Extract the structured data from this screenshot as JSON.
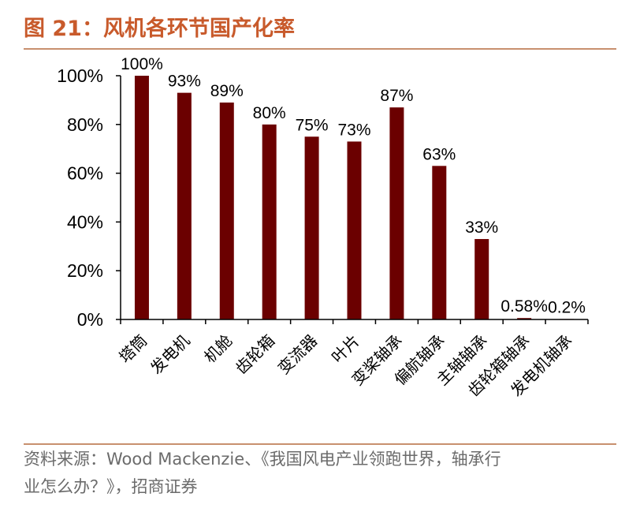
{
  "header": {
    "title": "图 21：风机各环节国产化率"
  },
  "colors": {
    "accent": "#c85a2b",
    "bar": "#6b0000",
    "rule": "#c8906e",
    "axis": "#000000",
    "source_text": "#6b6b6b"
  },
  "chart_data": {
    "type": "bar",
    "title": "",
    "xlabel": "",
    "ylabel": "",
    "categories": [
      "塔筒",
      "发电机",
      "机舱",
      "齿轮箱",
      "变流器",
      "叶片",
      "变桨轴承",
      "偏航轴承",
      "主轴轴承",
      "齿轮箱轴承",
      "发电机轴承"
    ],
    "values": [
      100,
      93,
      89,
      80,
      75,
      73,
      87,
      63,
      33,
      0.58,
      0.2
    ],
    "value_labels": [
      "100%",
      "93%",
      "89%",
      "80%",
      "75%",
      "73%",
      "87%",
      "63%",
      "33%",
      "0.58%",
      "0.2%"
    ],
    "ylim": [
      0,
      100
    ],
    "yticks": [
      0,
      20,
      40,
      60,
      80,
      100
    ],
    "ytick_labels": [
      "0%",
      "20%",
      "40%",
      "60%",
      "80%",
      "100%"
    ],
    "grid": false,
    "legend": "none"
  },
  "footer": {
    "source_line1": "资料来源：Wood Mackenzie、《我国风电产业领跑世界，轴承行",
    "source_line2": "业怎么办？》，招商证券"
  }
}
